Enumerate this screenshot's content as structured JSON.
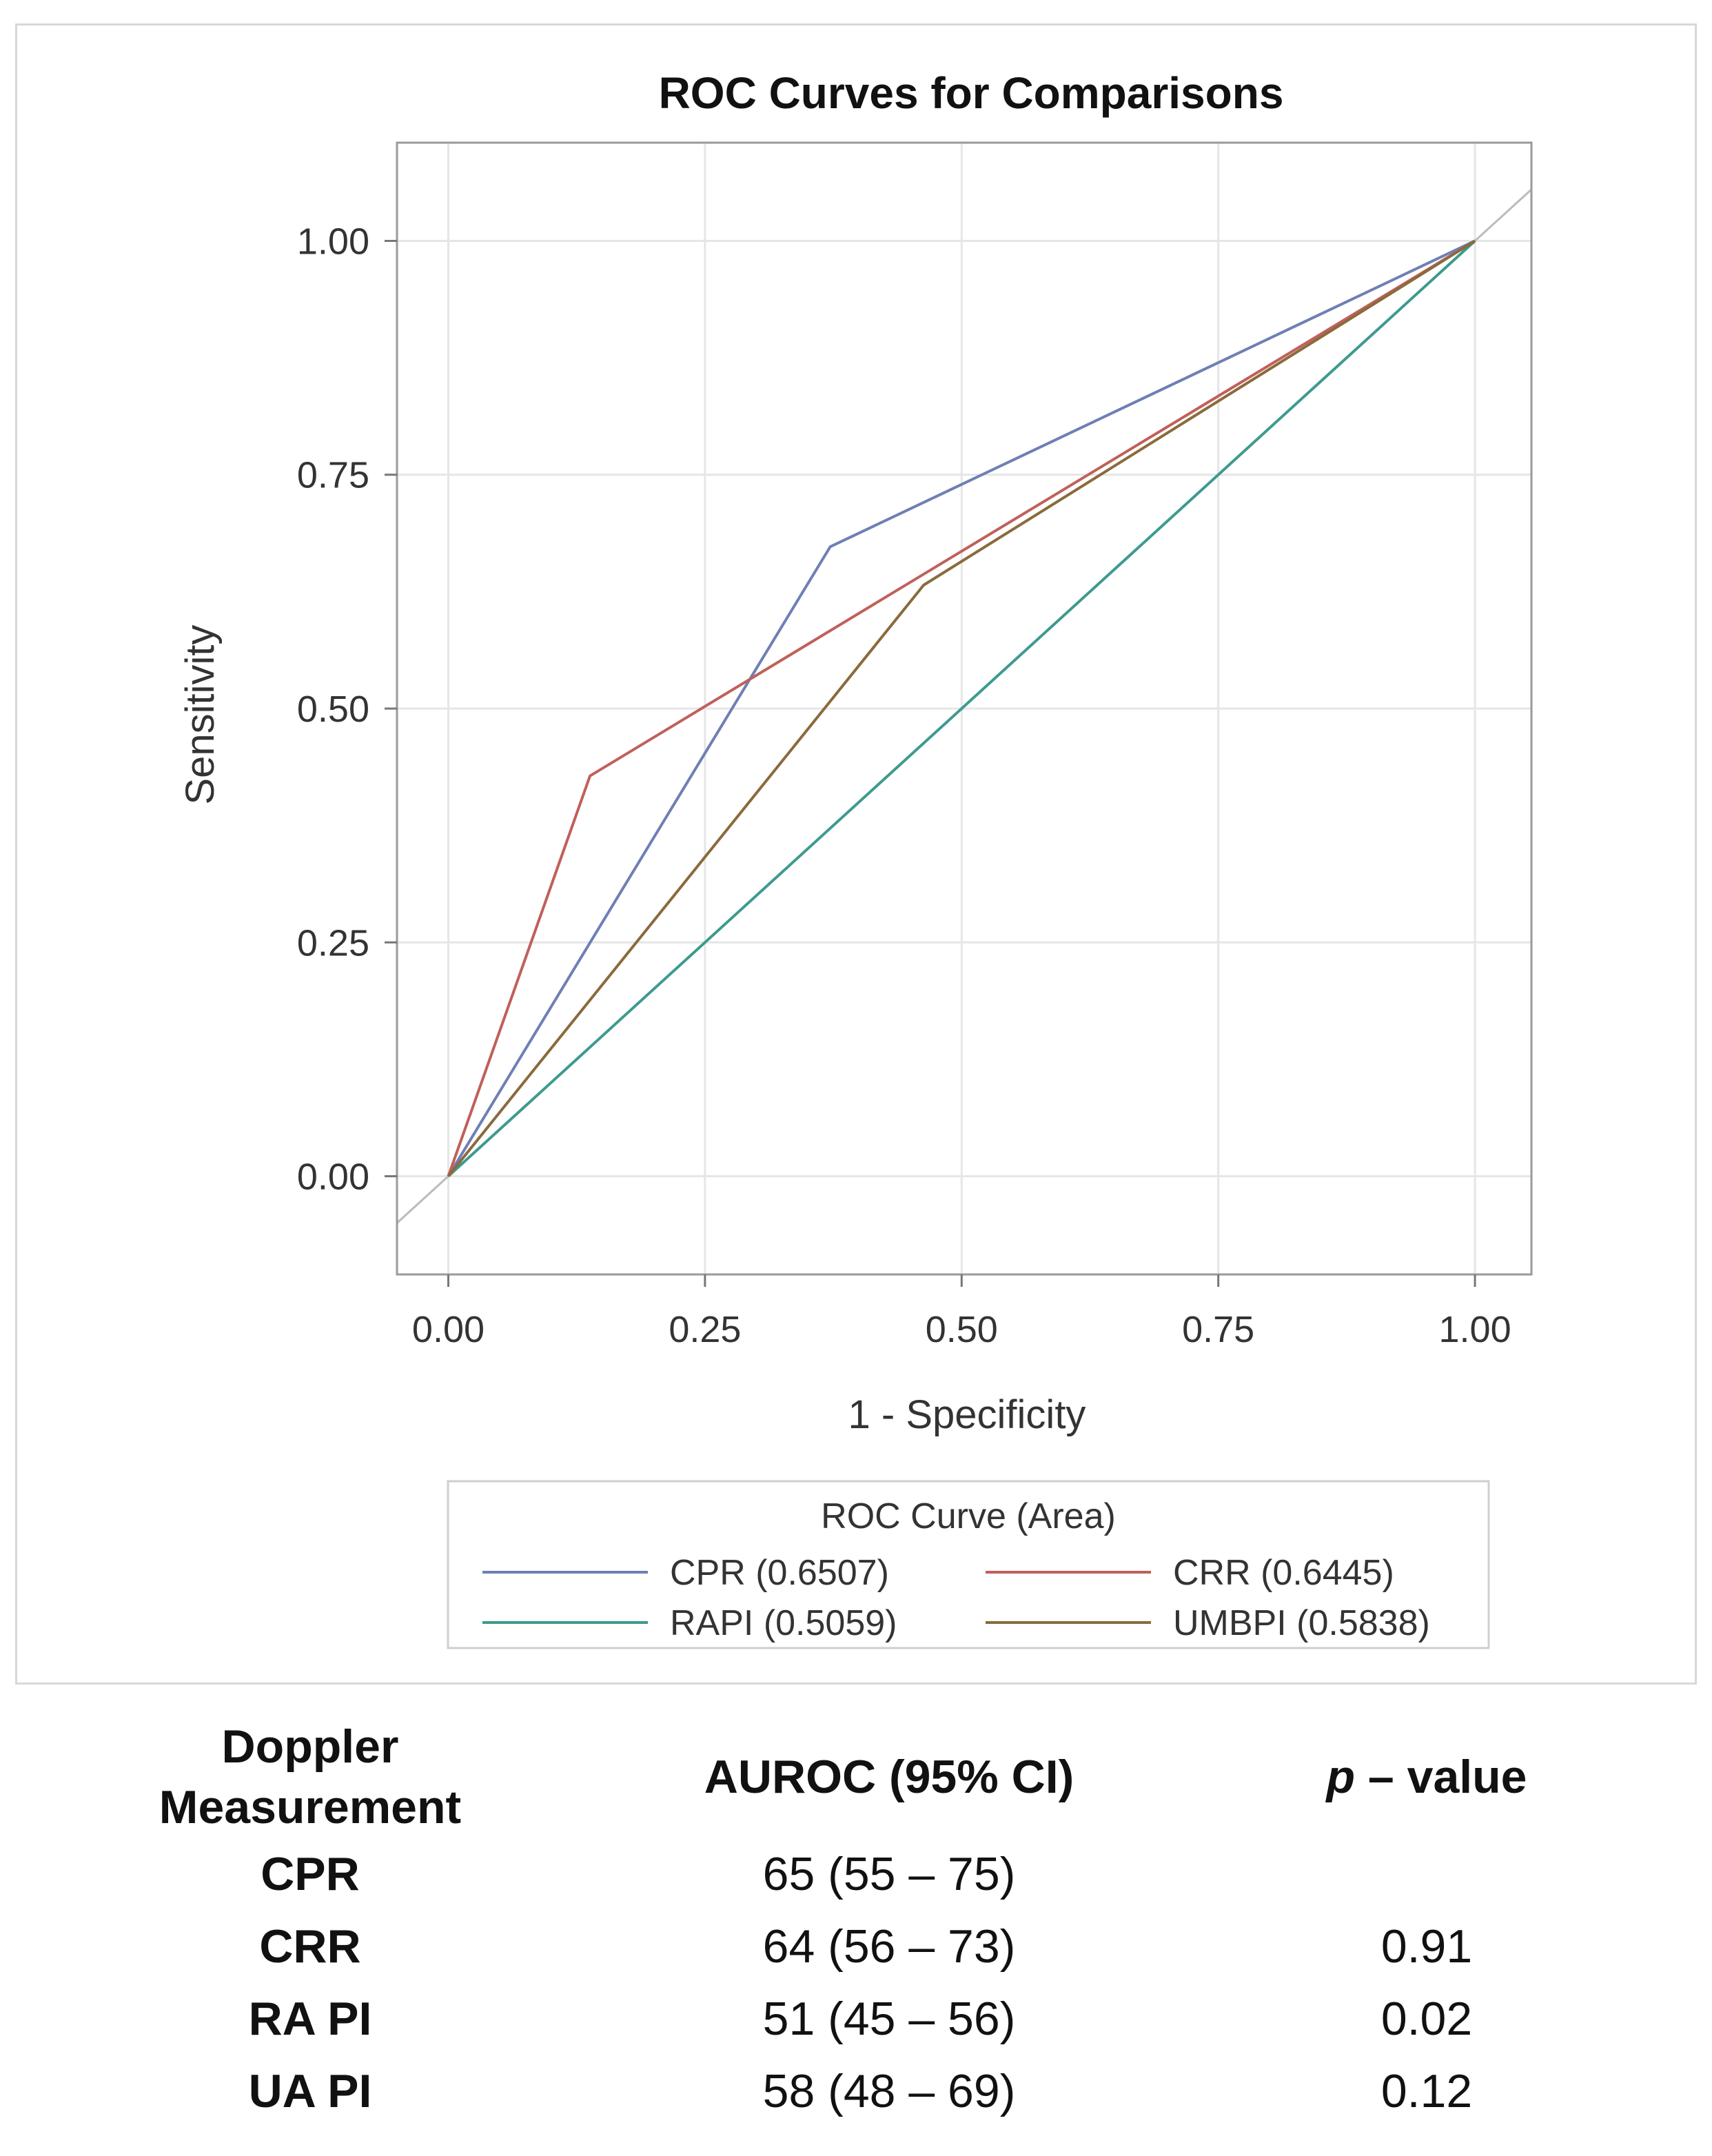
{
  "chart_data": {
    "type": "line",
    "title": "ROC Curves for Comparisons",
    "xlabel": "1 - Specificity",
    "ylabel": "Sensitivity",
    "xlim": [
      -0.05,
      1.055
    ],
    "ylim": [
      -0.105,
      1.105
    ],
    "xticks": [
      0,
      0.25,
      0.5,
      0.75,
      1
    ],
    "yticks": [
      0,
      0.25,
      0.5,
      0.75,
      1
    ],
    "xtick_labels": [
      "0.00",
      "0.25",
      "0.50",
      "0.75",
      "1.00"
    ],
    "ytick_labels": [
      "0.00",
      "0.25",
      "0.50",
      "0.75",
      "1.00"
    ],
    "grid": true,
    "legend": {
      "title": "ROC Curve (Area)",
      "position": "bottom",
      "entries": [
        {
          "name": "CPR",
          "area": "(0.6507)",
          "color": "#6f7fb5"
        },
        {
          "name": "CRR",
          "area": "(0.6445)",
          "color": "#c0605a"
        },
        {
          "name": "RAPI",
          "area": "(0.5059)",
          "color": "#3d9a8e"
        },
        {
          "name": "UMBPI",
          "area": "(0.5838)",
          "color": "#8a6a3c"
        }
      ]
    },
    "series": [
      {
        "name": "CPR",
        "color": "#6f7fb5",
        "x": [
          0,
          0.372,
          1
        ],
        "y": [
          0,
          0.673,
          1
        ]
      },
      {
        "name": "CRR",
        "color": "#c0605a",
        "x": [
          0,
          0.138,
          1
        ],
        "y": [
          0,
          0.428,
          1
        ]
      },
      {
        "name": "RAPI",
        "color": "#3d9a8e",
        "x": [
          0,
          1
        ],
        "y": [
          0,
          1
        ]
      },
      {
        "name": "UMBPI",
        "color": "#8a6a3c",
        "x": [
          0,
          0.463,
          1
        ],
        "y": [
          0,
          0.632,
          1
        ]
      }
    ],
    "reference_line": {
      "x": [
        -0.05,
        1.055
      ],
      "y": [
        -0.05,
        1.055
      ],
      "color": "#bbbbbb"
    }
  },
  "table": {
    "headers": [
      "Doppler\nMeasurement",
      "AUROC (95% CI)",
      "p – value"
    ],
    "header_p_italic": "p",
    "header_p_rest": " – value",
    "header_col1_line1": "Doppler",
    "header_col1_line2": "Measurement",
    "rows": [
      {
        "label": "CPR",
        "auroc": "65 (55 – 75)",
        "p": ""
      },
      {
        "label": "CRR",
        "auroc": "64 (56 – 73)",
        "p": "0.91"
      },
      {
        "label": "RA PI",
        "auroc": "51 (45 – 56)",
        "p": "0.02"
      },
      {
        "label": "UA PI",
        "auroc": "58 (48 – 69)",
        "p": "0.12"
      }
    ]
  }
}
